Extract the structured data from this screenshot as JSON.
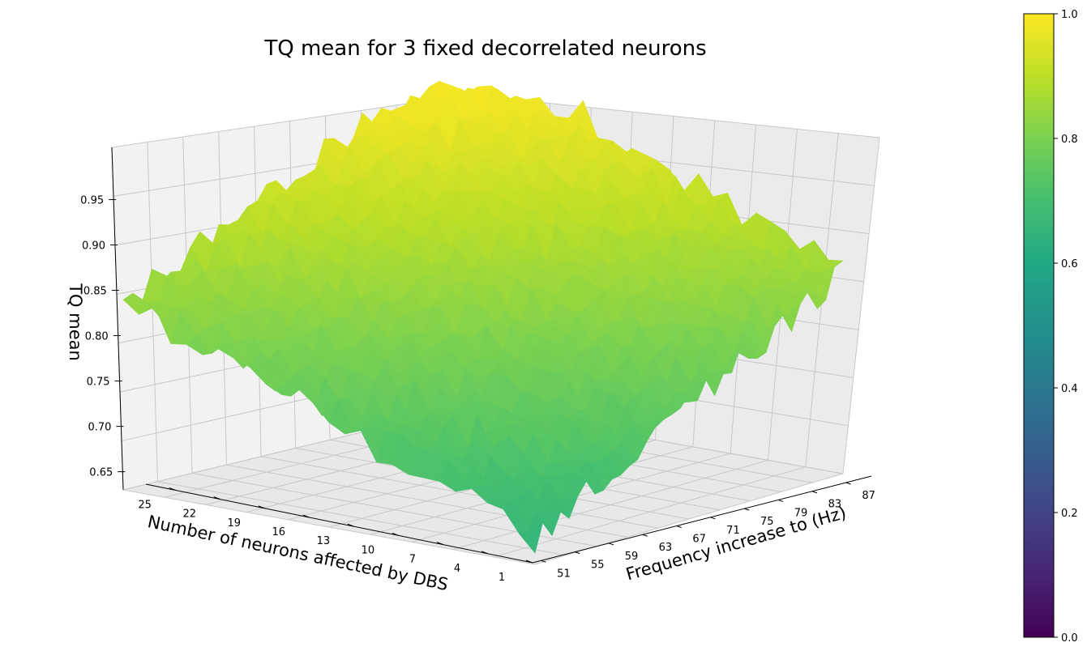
{
  "chart_data": {
    "type": "surface3d",
    "title": "TQ mean for 3 fixed decorrelated neurons",
    "xlabel": "Number of neurons affected by DBS",
    "ylabel": "Frequency increase to (Hz)",
    "zlabel": "TQ mean",
    "x_ticks": [
      25,
      22,
      19,
      16,
      13,
      10,
      7,
      4,
      1
    ],
    "y_ticks": [
      51,
      55,
      59,
      63,
      67,
      71,
      75,
      79,
      83,
      87
    ],
    "z_ticks": [
      "0.65",
      "0.70",
      "0.75",
      "0.80",
      "0.85",
      "0.90",
      "0.95"
    ],
    "x_range": [
      1,
      27
    ],
    "y_range": [
      50,
      90
    ],
    "z_range": [
      0.63,
      1.0
    ],
    "surface_trend": {
      "description_values": {
        "low_neurons_low_freq": 0.66,
        "high_neurons_high_freq": 0.98
      }
    },
    "colorbar": {
      "colormap": "viridis",
      "ticks": [
        "0.0",
        "0.2",
        "0.4",
        "0.6",
        "0.8",
        "1.0"
      ],
      "range": [
        0.0,
        1.0
      ]
    },
    "grid": true
  }
}
